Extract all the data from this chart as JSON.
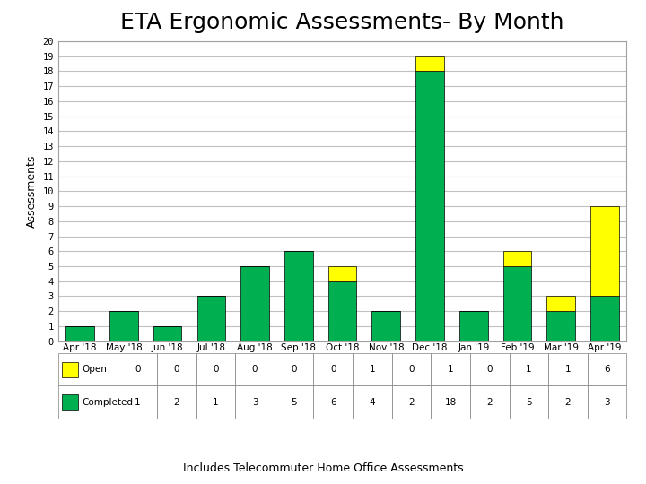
{
  "title": "ETA Ergonomic Assessments- By Month",
  "ylabel": "Assessments",
  "subtitle": "Includes Telecommuter Home Office Assessments",
  "categories": [
    "Apr '18",
    "May '18",
    "Jun '18",
    "Jul '18",
    "Aug '18",
    "Sep '18",
    "Oct '18",
    "Nov '18",
    "Dec '18",
    "Jan '19",
    "Feb '19",
    "Mar '19",
    "Apr '19"
  ],
  "completed": [
    1,
    2,
    1,
    3,
    5,
    6,
    4,
    2,
    18,
    2,
    5,
    2,
    3
  ],
  "open": [
    0,
    0,
    0,
    0,
    0,
    0,
    1,
    0,
    1,
    0,
    1,
    1,
    6
  ],
  "completed_color": "#00b050",
  "open_color": "#ffff00",
  "ylim_max": 20,
  "yticks": [
    0,
    1,
    2,
    3,
    4,
    5,
    6,
    7,
    8,
    9,
    10,
    11,
    12,
    13,
    14,
    15,
    16,
    17,
    18,
    19,
    20
  ],
  "grid_color": "#c0c0c0",
  "background_color": "#ffffff",
  "bar_edge_color": "#000000",
  "title_fontsize": 18,
  "ylabel_fontsize": 9,
  "tick_fontsize": 7.5,
  "table_fontsize": 7.5,
  "subtitle_fontsize": 9,
  "bar_width": 0.65
}
